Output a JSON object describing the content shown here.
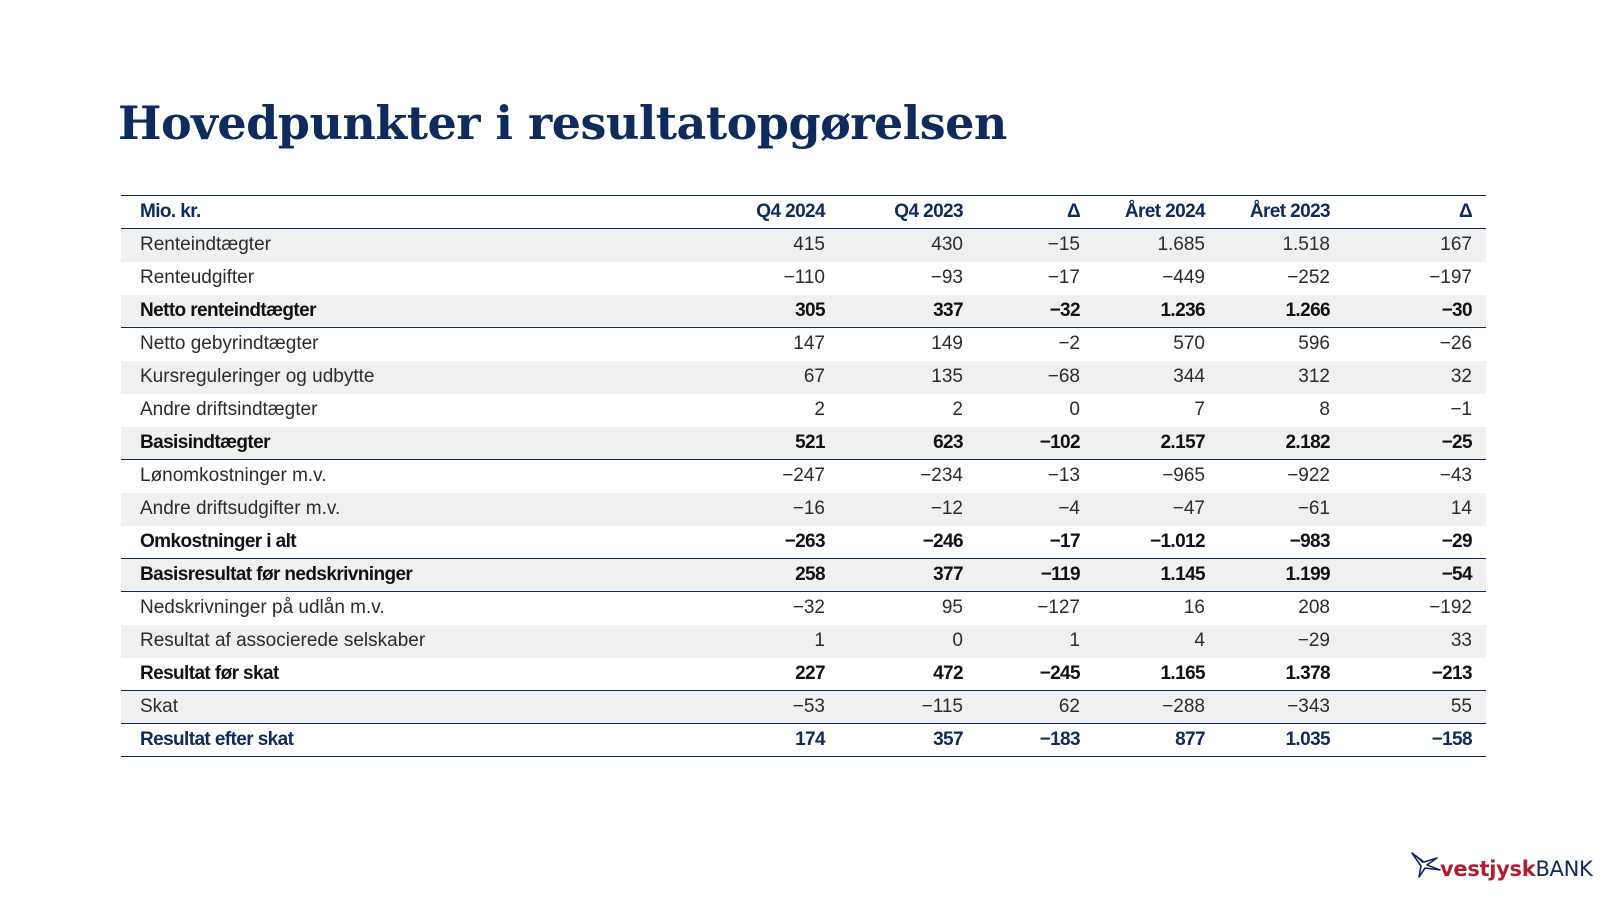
{
  "title": "Hovedpunkter i resultatopgørelsen",
  "table": {
    "headers": [
      "Mio. kr.",
      "Q4 2024",
      "Q4 2023",
      "Δ",
      "Året 2024",
      "Året 2023",
      "Δ"
    ],
    "rows": [
      {
        "label": "Renteindtægter",
        "values": [
          "415",
          "430",
          "−15",
          "1.685",
          "1.518",
          "167"
        ]
      },
      {
        "label": "Renteudgifter",
        "values": [
          "−110",
          "−93",
          "−17",
          "−449",
          "−252",
          "−197"
        ]
      },
      {
        "label": "Netto renteindtægter",
        "values": [
          "305",
          "337",
          "−32",
          "1.236",
          "1.266",
          "−30"
        ]
      },
      {
        "label": "Netto gebyrindtægter",
        "values": [
          "147",
          "149",
          "−2",
          "570",
          "596",
          "−26"
        ]
      },
      {
        "label": "Kursreguleringer og udbytte",
        "values": [
          "67",
          "135",
          "−68",
          "344",
          "312",
          "32"
        ]
      },
      {
        "label": "Andre driftsindtægter",
        "values": [
          "2",
          "2",
          "0",
          "7",
          "8",
          "−1"
        ]
      },
      {
        "label": "Basisindtægter",
        "values": [
          "521",
          "623",
          "−102",
          "2.157",
          "2.182",
          "−25"
        ]
      },
      {
        "label": "Lønomkostninger m.v.",
        "values": [
          "−247",
          "−234",
          "−13",
          "−965",
          "−922",
          "−43"
        ]
      },
      {
        "label": "Andre driftsudgifter m.v.",
        "values": [
          "−16",
          "−12",
          "−4",
          "−47",
          "−61",
          "14"
        ]
      },
      {
        "label": "Omkostninger i alt",
        "values": [
          "−263",
          "−246",
          "−17",
          "−1.012",
          "−983",
          "−29"
        ]
      },
      {
        "label": "Basisresultat før nedskrivninger",
        "values": [
          "258",
          "377",
          "−119",
          "1.145",
          "1.199",
          "−54"
        ]
      },
      {
        "label": "Nedskrivninger på udlån m.v.",
        "values": [
          "−32",
          "95",
          "−127",
          "16",
          "208",
          "−192"
        ]
      },
      {
        "label": "Resultat af associerede selskaber",
        "values": [
          "1",
          "0",
          "1",
          "4",
          "−29",
          "33"
        ]
      },
      {
        "label": "Resultat før skat",
        "values": [
          "227",
          "472",
          "−245",
          "1.165",
          "1.378",
          "−213"
        ]
      },
      {
        "label": "Skat",
        "values": [
          "−53",
          "−115",
          "62",
          "−288",
          "−343",
          "55"
        ]
      },
      {
        "label": "Resultat efter skat",
        "values": [
          "174",
          "357",
          "−183",
          "877",
          "1.035",
          "−158"
        ]
      }
    ]
  },
  "logo": {
    "part1": "vestjysk",
    "part2": "BANK"
  },
  "colors": {
    "navy": "#0f2a5c",
    "stripe": "#f0f0f0",
    "logo_red": "#b11f2e"
  }
}
